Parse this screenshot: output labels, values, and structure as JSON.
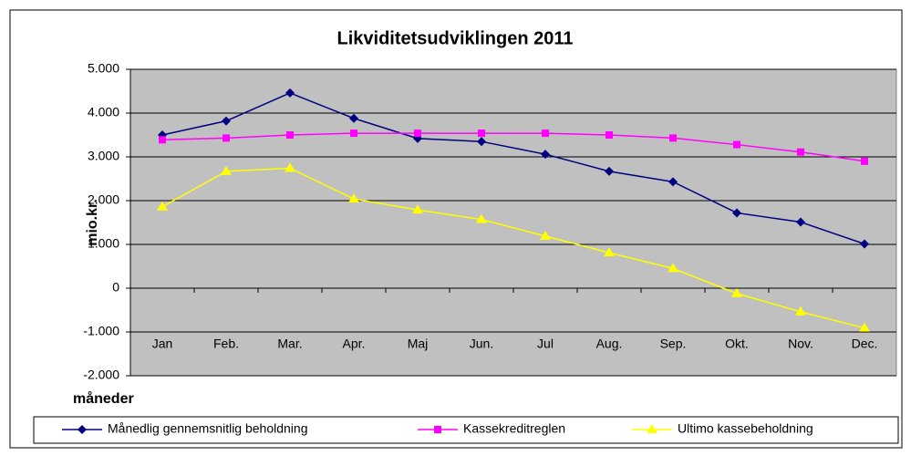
{
  "chart_data": {
    "type": "line",
    "title": "Likviditetsudviklingen 2011",
    "ylabel": "mio.kr.",
    "xlabel": "måneder",
    "categories": [
      "Jan",
      "Feb.",
      "Mar.",
      "Apr.",
      "Maj",
      "Jun.",
      "Jul",
      "Aug.",
      "Sep.",
      "Okt.",
      "Nov.",
      "Dec."
    ],
    "series": [
      {
        "name": "Månedlig gennemsnitlig beholdning",
        "color": "#000080",
        "marker": "diamond",
        "values": [
          3500,
          3820,
          4460,
          3880,
          3420,
          3350,
          3060,
          2670,
          2430,
          1720,
          1510,
          1010
        ]
      },
      {
        "name": "Kassekreditreglen",
        "color": "#ff00ff",
        "marker": "square",
        "values": [
          3390,
          3430,
          3500,
          3540,
          3540,
          3540,
          3540,
          3500,
          3430,
          3280,
          3110,
          2900
        ]
      },
      {
        "name": "Ultimo kassebeholdning",
        "color": "#ffff00",
        "marker": "triangle",
        "values": [
          1860,
          2670,
          2740,
          2040,
          1790,
          1570,
          1190,
          810,
          450,
          -120,
          -540,
          -910
        ]
      }
    ],
    "ylim": [
      -2000,
      5000
    ],
    "yticks": [
      {
        "value": -2000,
        "label": "-2.000"
      },
      {
        "value": -1000,
        "label": "-1.000"
      },
      0,
      {
        "value": 1000,
        "label": "1.000"
      },
      {
        "value": 2000,
        "label": "2.000"
      },
      {
        "value": 3000,
        "label": "3.000"
      },
      {
        "value": 4000,
        "label": "4.000"
      },
      {
        "value": 5000,
        "label": "5.000"
      }
    ],
    "grid": true,
    "legend": "bottom",
    "plot_background": "#c0c0c0"
  }
}
